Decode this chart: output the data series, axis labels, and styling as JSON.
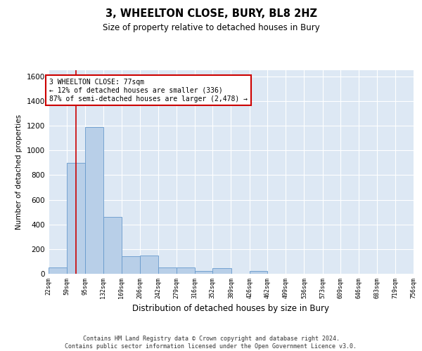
{
  "title": "3, WHEELTON CLOSE, BURY, BL8 2HZ",
  "subtitle": "Size of property relative to detached houses in Bury",
  "xlabel": "Distribution of detached houses by size in Bury",
  "ylabel": "Number of detached properties",
  "bar_color": "#b8cfe8",
  "bar_edge_color": "#6699cc",
  "background_color": "#dde8f4",
  "grid_color": "#ffffff",
  "property_size": 77,
  "annotation_line1": "3 WHEELTON CLOSE: 77sqm",
  "annotation_line2": "← 12% of detached houses are smaller (336)",
  "annotation_line3": "87% of semi-detached houses are larger (2,478) →",
  "annotation_box_color": "#ffffff",
  "annotation_box_edge_color": "#cc0000",
  "vline_color": "#cc0000",
  "footer_text": "Contains HM Land Registry data © Crown copyright and database right 2024.\nContains public sector information licensed under the Open Government Licence v3.0.",
  "bin_edges": [
    22,
    59,
    95,
    132,
    169,
    206,
    242,
    279,
    316,
    352,
    389,
    426,
    462,
    499,
    536,
    573,
    609,
    646,
    683,
    719,
    756
  ],
  "bar_heights": [
    50,
    900,
    1190,
    460,
    145,
    150,
    50,
    50,
    20,
    45,
    0,
    25,
    0,
    0,
    0,
    0,
    0,
    0,
    0,
    0
  ],
  "ylim": [
    0,
    1650
  ],
  "yticks": [
    0,
    200,
    400,
    600,
    800,
    1000,
    1200,
    1400,
    1600
  ]
}
